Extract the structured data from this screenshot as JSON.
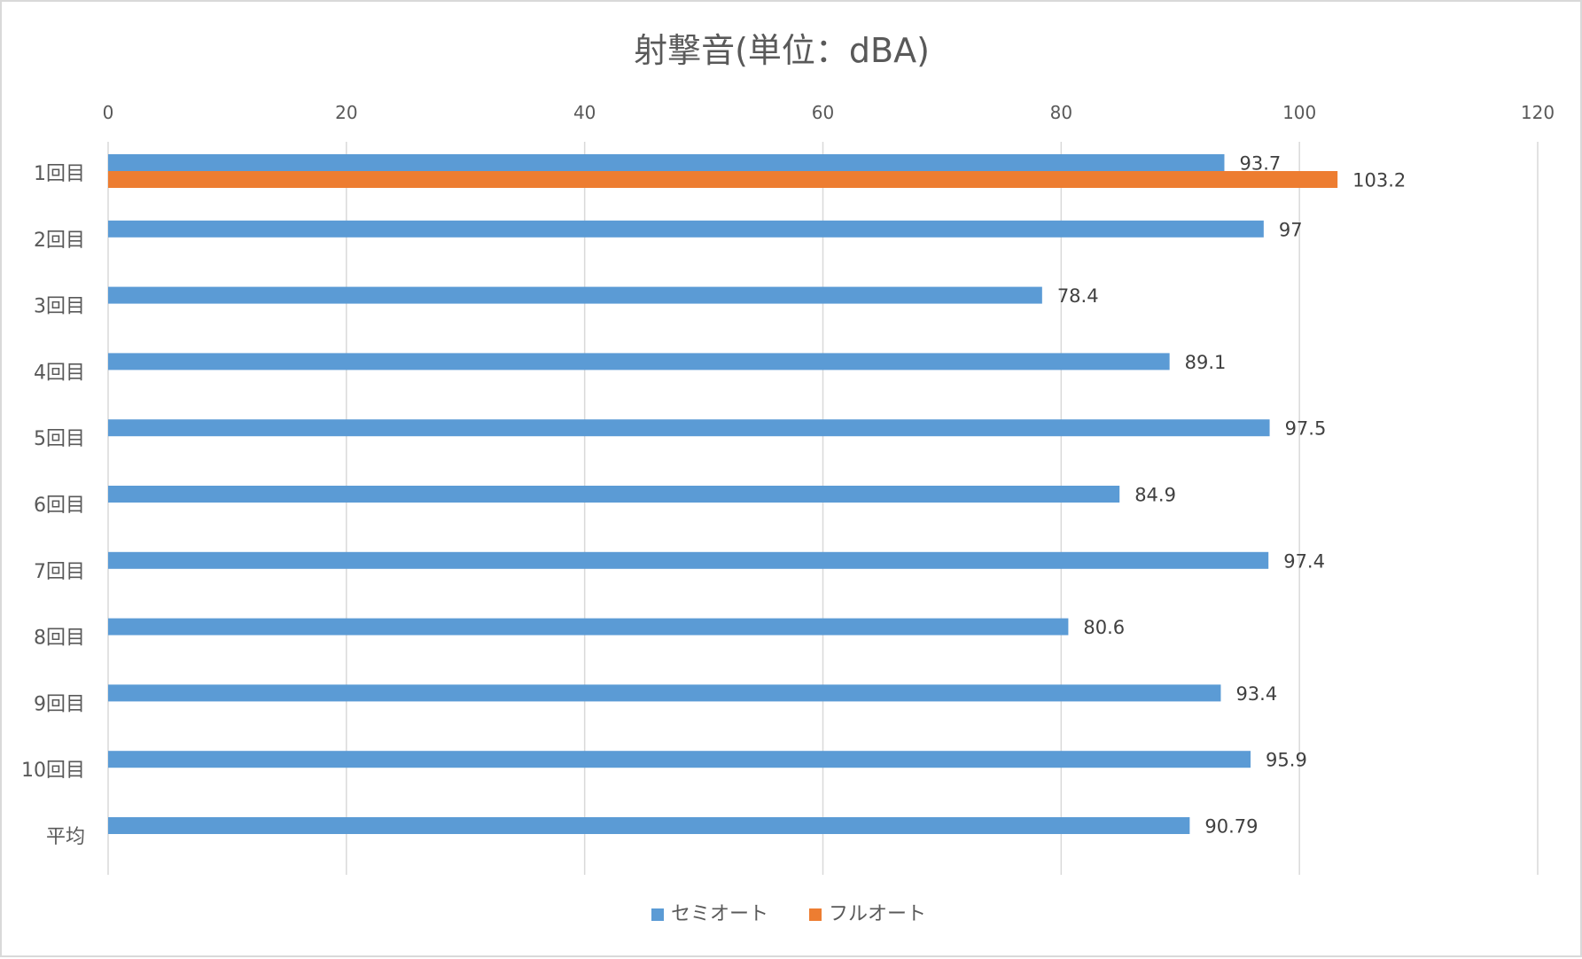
{
  "chart_data": {
    "type": "bar",
    "orientation": "horizontal",
    "title": "射撃音(単位：dBA)",
    "categories": [
      "1回目",
      "2回目",
      "3回目",
      "4回目",
      "5回目",
      "6回目",
      "7回目",
      "8回目",
      "9回目",
      "10回目",
      "平均"
    ],
    "series": [
      {
        "name": "セミオート",
        "color": "#5b9bd5",
        "values": [
          93.7,
          97,
          78.4,
          89.1,
          97.5,
          84.9,
          97.4,
          80.6,
          93.4,
          95.9,
          90.79
        ],
        "labels": [
          "93.7",
          "97",
          "78.4",
          "89.1",
          "97.5",
          "84.9",
          "97.4",
          "80.6",
          "93.4",
          "95.9",
          "90.79"
        ]
      },
      {
        "name": "フルオート",
        "color": "#ed7d31",
        "values": [
          103.2,
          null,
          null,
          null,
          null,
          null,
          null,
          null,
          null,
          null,
          null
        ],
        "labels": [
          "103.2",
          "",
          "",
          "",
          "",
          "",
          "",
          "",
          "",
          "",
          ""
        ]
      }
    ],
    "xlim": [
      0,
      120
    ],
    "xticks": [
      0,
      20,
      40,
      60,
      80,
      100,
      120
    ],
    "xtick_labels": [
      "0",
      "20",
      "40",
      "60",
      "80",
      "100",
      "120"
    ],
    "xaxis_position": "top",
    "grid": true,
    "legend": "bottom"
  }
}
